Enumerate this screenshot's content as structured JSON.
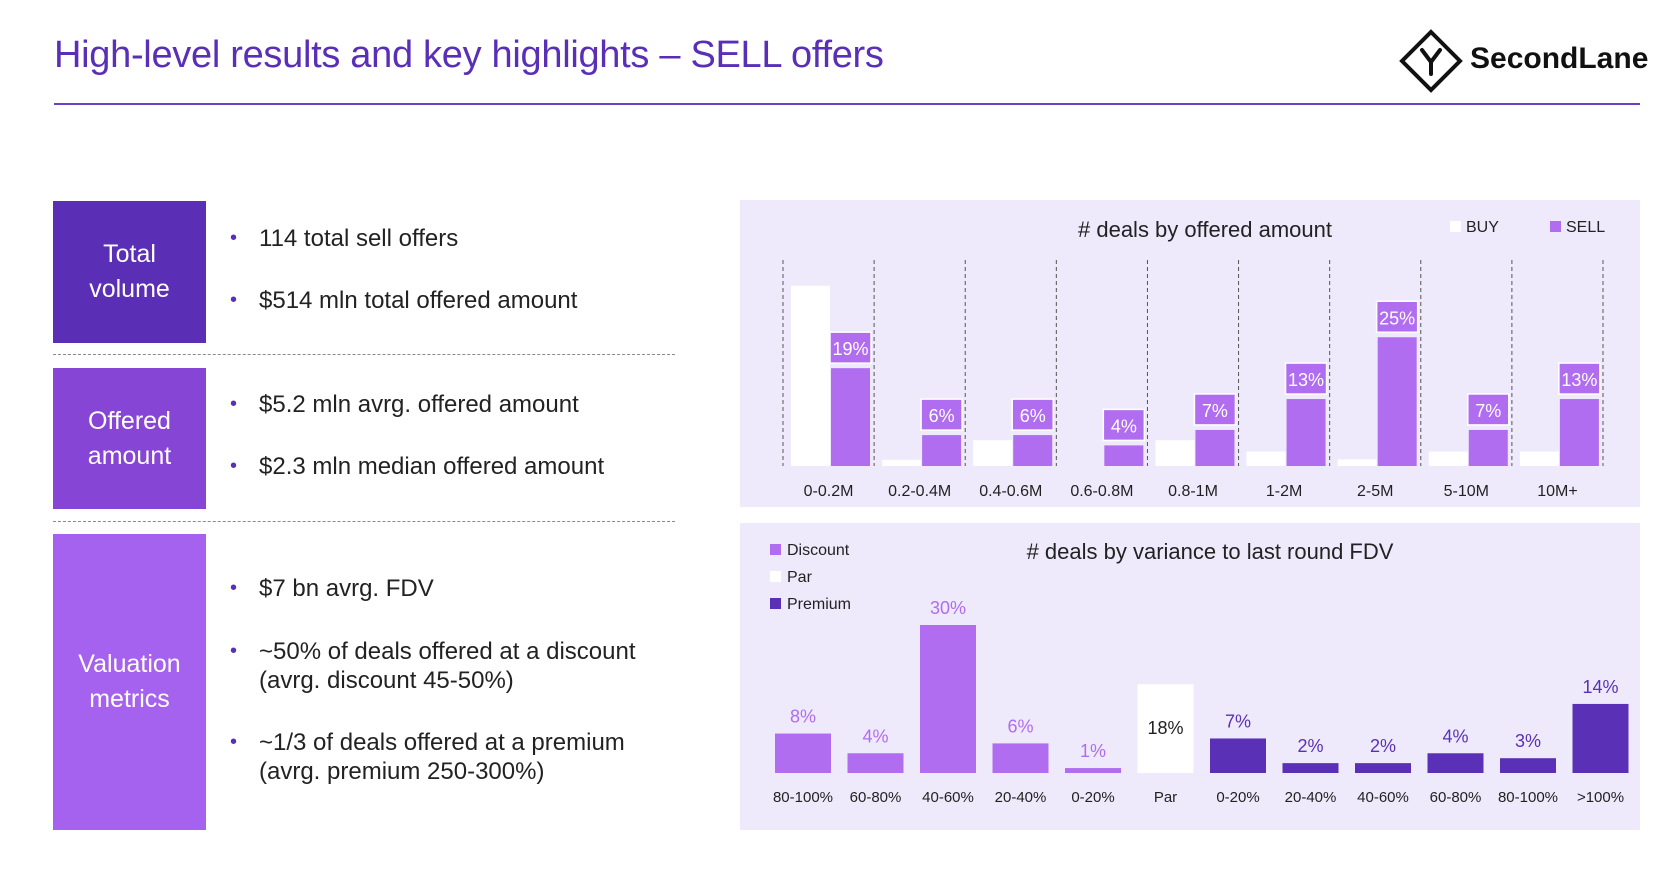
{
  "header": {
    "title": "High-level results and key highlights – SELL offers"
  },
  "logo": {
    "text": "SecondLane"
  },
  "colors": {
    "accent": "#5a2fb8",
    "sell": "#b06df0",
    "premium": "#5a30b6",
    "panel": "#eeeafb"
  },
  "sections": [
    {
      "label": "Total volume",
      "color": "#5b2fb5",
      "bullets": [
        "114 total sell offers",
        "$514 mln total offered amount"
      ]
    },
    {
      "label": "Offered amount",
      "color": "#8745d6",
      "bullets": [
        "$5.2 mln avrg. offered amount",
        "$2.3 mln median offered amount"
      ]
    },
    {
      "label": "Valuation metrics",
      "color": "#a562ee",
      "bullets": [
        "$7 bn avrg. FDV",
        "~50% of deals offered at a discount\n(avrg. discount 45-50%)",
        "~1/3 of deals offered at a premium\n(avrg. premium 250-300%)"
      ]
    }
  ],
  "chart_data": [
    {
      "type": "bar",
      "title": "# deals by offered amount",
      "categories": [
        "0-0.2M",
        "0.2-0.4M",
        "0.4-0.6M",
        "0.6-0.8M",
        "0.8-1M",
        "1-2M",
        "2-5M",
        "5-10M",
        "10M+"
      ],
      "series": [
        {
          "name": "BUY",
          "values": [
            35,
            1.2,
            5,
            0,
            5,
            2.8,
            1.3,
            2.8,
            2.8
          ],
          "color": "#ffffff"
        },
        {
          "name": "SELL",
          "values": [
            19,
            6,
            6,
            4,
            7,
            13,
            25,
            7,
            13
          ],
          "labels": [
            "19%",
            "6%",
            "6%",
            "4%",
            "7%",
            "13%",
            "25%",
            "7%",
            "13%"
          ],
          "color": "#b06df0"
        }
      ],
      "legend": [
        "BUY",
        "SELL"
      ],
      "legend_position": "top-right",
      "ylim": [
        0,
        40
      ],
      "unit": "%"
    },
    {
      "type": "bar",
      "title": "# deals by variance to last round FDV",
      "categories": [
        "80-100%",
        "60-80%",
        "40-60%",
        "20-40%",
        "0-20%",
        "Par",
        "0-20%",
        "20-40%",
        "40-60%",
        "60-80%",
        "80-100%",
        ">100%"
      ],
      "values": [
        8,
        4,
        30,
        6,
        1,
        18,
        7,
        2,
        2,
        4,
        3,
        14
      ],
      "labels": [
        "8%",
        "4%",
        "30%",
        "6%",
        "1%",
        "18%",
        "7%",
        "2%",
        "2%",
        "4%",
        "3%",
        "14%"
      ],
      "groups": [
        "Discount",
        "Discount",
        "Discount",
        "Discount",
        "Discount",
        "Par",
        "Premium",
        "Premium",
        "Premium",
        "Premium",
        "Premium",
        "Premium"
      ],
      "legend": [
        {
          "name": "Discount",
          "color": "#b06df0"
        },
        {
          "name": "Par",
          "color": "#ffffff"
        },
        {
          "name": "Premium",
          "color": "#5a30b6"
        }
      ],
      "legend_position": "top-left",
      "ylim": [
        0,
        30
      ],
      "unit": "%"
    }
  ]
}
